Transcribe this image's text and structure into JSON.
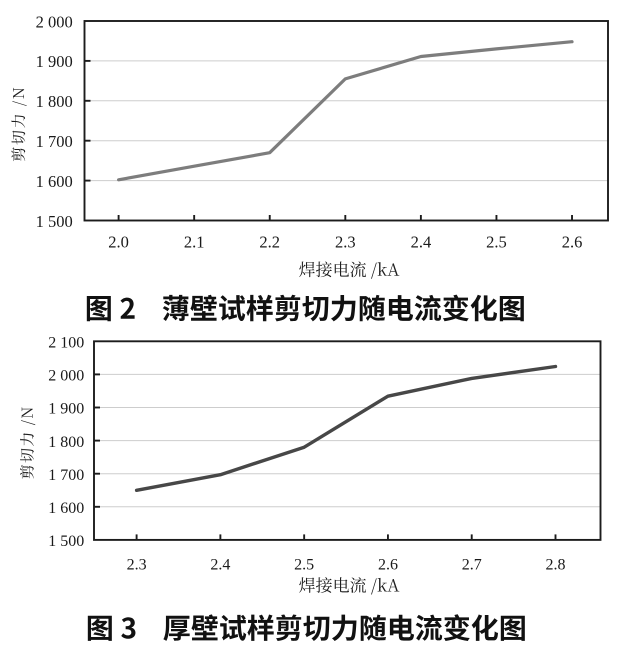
{
  "page": {
    "background": "#ffffff",
    "text_color": "#1a1a1a"
  },
  "chart_data": [
    {
      "type": "line",
      "name": "thin-wall-shear-vs-current",
      "caption": "图 2　薄壁试样剪切力随电流变化图",
      "xlabel": "焊接电流 /kA",
      "ylabel": "剪切力 /N",
      "x": [
        2.0,
        2.1,
        2.2,
        2.3,
        2.4,
        2.5,
        2.6
      ],
      "x_tick_labels": [
        "2.0",
        "2.1",
        "2.2",
        "2.3",
        "2.4",
        "2.5",
        "2.6"
      ],
      "values": [
        1602,
        1636,
        1670,
        1855,
        1911,
        1930,
        1948
      ],
      "ylim": [
        1500,
        2000
      ],
      "y_tick_step": 100,
      "y_tick_labels": [
        "1 500",
        "1 600",
        "1 700",
        "1 800",
        "1 900",
        "2 000"
      ],
      "grid": true,
      "line_color": "#7d7d7d"
    },
    {
      "type": "line",
      "name": "thick-wall-shear-vs-current",
      "caption": "图 3　厚壁试样剪切力随电流变化图",
      "xlabel": "焊接电流 /kA",
      "ylabel": "剪切力 /N",
      "x": [
        2.3,
        2.4,
        2.5,
        2.6,
        2.7,
        2.8
      ],
      "x_tick_labels": [
        "2.3",
        "2.4",
        "2.5",
        "2.6",
        "2.7",
        "2.8"
      ],
      "values": [
        1650,
        1697,
        1780,
        1934,
        1988,
        2024
      ],
      "ylim": [
        1500,
        2100
      ],
      "y_tick_step": 100,
      "y_tick_labels": [
        "1 500",
        "1 600",
        "1 700",
        "1 800",
        "1 900",
        "2 000",
        "2 100"
      ],
      "grid": true,
      "line_color": "#474747"
    }
  ]
}
